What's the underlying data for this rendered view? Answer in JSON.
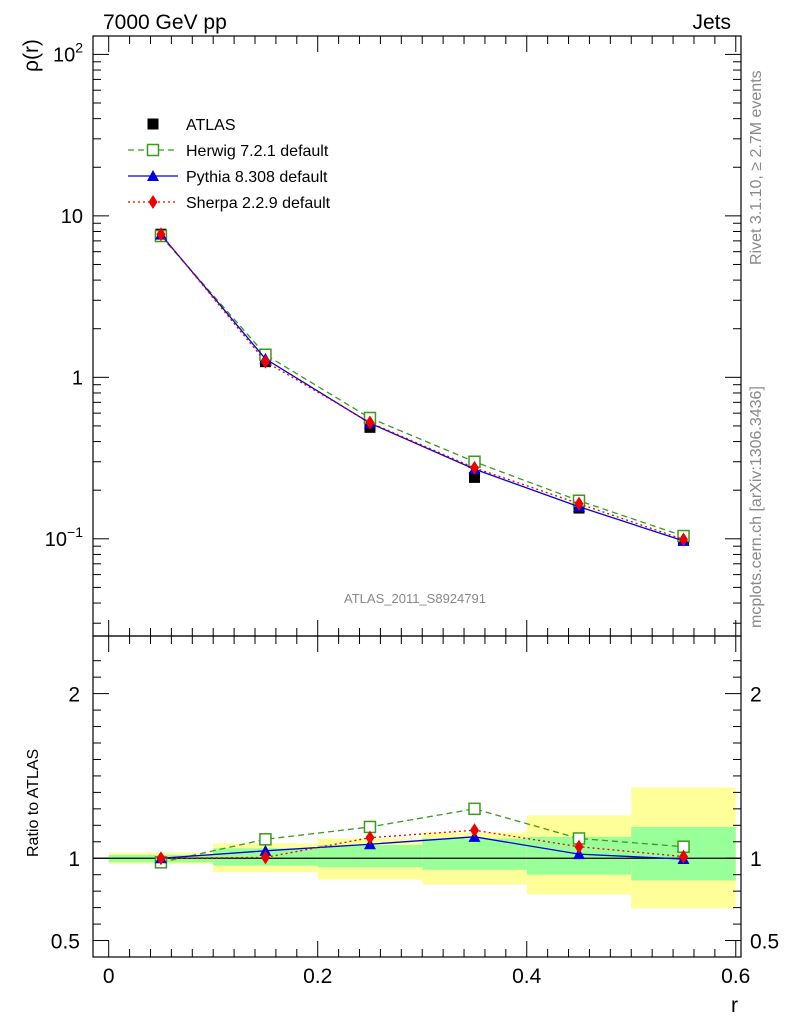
{
  "header": {
    "left": "7000 GeV pp",
    "right": "Jets"
  },
  "side_labels": {
    "rivet": "Rivet 3.1.10, ≥ 2.7M events",
    "mcplots": "mcplots.cern.ch [arXiv:1306.3436]"
  },
  "watermark": "ATLAS_2011_S8924791",
  "chart_data": [
    {
      "type": "line",
      "panel": "main",
      "ylabel": "ρ(r)",
      "yscale": "log",
      "ylim": [
        0.025,
        130
      ],
      "xlim": [
        -0.015,
        0.605
      ],
      "y_ticks": [
        {
          "v": 0.1,
          "base": "10",
          "exp": "−1"
        },
        {
          "v": 1,
          "base": "1",
          "exp": ""
        },
        {
          "v": 10,
          "base": "10",
          "exp": ""
        },
        {
          "v": 100,
          "base": "10",
          "exp": "2"
        }
      ],
      "x": [
        0.05,
        0.15,
        0.25,
        0.35,
        0.45,
        0.55
      ],
      "series": [
        {
          "name": "ATLAS",
          "style": "data",
          "color": "#000000",
          "values": [
            7.7,
            1.25,
            0.49,
            0.24,
            0.155,
            0.098
          ]
        },
        {
          "name": "Herwig 7.2.1 default",
          "style": "herwig",
          "color": "#3a9a1c",
          "values": [
            7.5,
            1.38,
            0.56,
            0.3,
            0.172,
            0.104
          ]
        },
        {
          "name": "Pythia 8.308 default",
          "style": "pythia",
          "color": "#0000dd",
          "values": [
            7.65,
            1.3,
            0.52,
            0.27,
            0.158,
            0.097
          ]
        },
        {
          "name": "Sherpa 2.2.9 default",
          "style": "sherpa",
          "color": "#ee0000",
          "values": [
            7.7,
            1.25,
            0.525,
            0.275,
            0.165,
            0.099
          ]
        }
      ]
    },
    {
      "type": "line",
      "panel": "ratio",
      "ylabel": "Ratio to ATLAS",
      "xlabel": "r",
      "ylim": [
        0.4,
        2.35
      ],
      "xlim": [
        -0.015,
        0.605
      ],
      "y_ticks": [
        {
          "v": 0.5,
          "label": "0.5"
        },
        {
          "v": 1,
          "label": "1"
        },
        {
          "v": 2,
          "label": "2"
        }
      ],
      "x_ticks": [
        {
          "v": 0,
          "label": "0"
        },
        {
          "v": 0.2,
          "label": "0.2"
        },
        {
          "v": 0.4,
          "label": "0.4"
        },
        {
          "v": 0.6,
          "label": "0.6"
        }
      ],
      "x": [
        0.05,
        0.15,
        0.25,
        0.35,
        0.45,
        0.55
      ],
      "bands": [
        {
          "x0": 0.0,
          "x1": 0.1,
          "stat": [
            0.975,
            1.02
          ],
          "total": [
            0.965,
            1.035
          ]
        },
        {
          "x0": 0.1,
          "x1": 0.2,
          "stat": [
            0.955,
            1.06
          ],
          "total": [
            0.915,
            1.09
          ]
        },
        {
          "x0": 0.2,
          "x1": 0.3,
          "stat": [
            0.945,
            1.08
          ],
          "total": [
            0.87,
            1.12
          ]
        },
        {
          "x0": 0.3,
          "x1": 0.4,
          "stat": [
            0.93,
            1.12
          ],
          "total": [
            0.84,
            1.155
          ]
        },
        {
          "x0": 0.4,
          "x1": 0.5,
          "stat": [
            0.9,
            1.13
          ],
          "total": [
            0.78,
            1.26
          ]
        },
        {
          "x0": 0.5,
          "x1": 0.6,
          "stat": [
            0.865,
            1.19
          ],
          "total": [
            0.695,
            1.43
          ]
        }
      ],
      "series": [
        {
          "name": "Herwig 7.2.1 default",
          "style": "herwig",
          "color": "#3a9a1c",
          "values": [
            0.975,
            1.115,
            1.19,
            1.3,
            1.12,
            1.07
          ]
        },
        {
          "name": "Pythia 8.308 default",
          "style": "pythia",
          "color": "#0000dd",
          "values": [
            1.0,
            1.045,
            1.085,
            1.13,
            1.025,
            0.995
          ]
        },
        {
          "name": "Sherpa 2.2.9 default",
          "style": "sherpa",
          "color": "#ee0000",
          "values": [
            1.0,
            1.005,
            1.125,
            1.17,
            1.07,
            1.01
          ]
        }
      ]
    }
  ],
  "colors": {
    "stat_band": "#99ff99",
    "total_band": "#ffff99"
  }
}
